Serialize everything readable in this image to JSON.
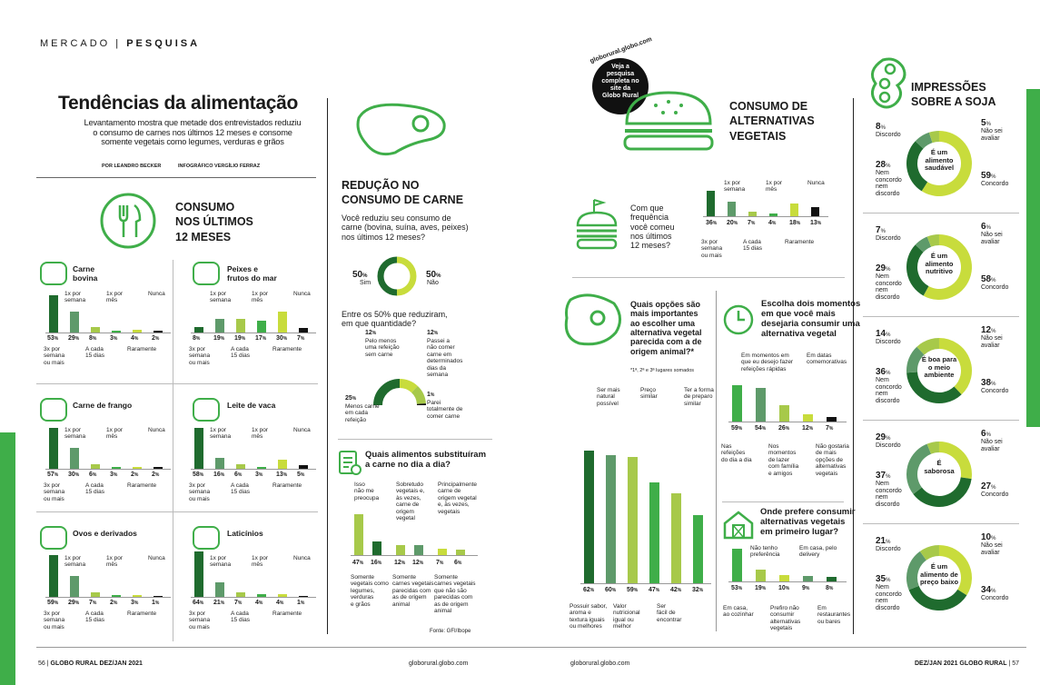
{
  "header": {
    "section": "MERCADO",
    "subsection": "PESQUISA"
  },
  "title": "Tendências da alimentação",
  "intro": "Levantamento mostra que metade dos entrevistados reduziu\no consumo de carnes nos últimos 12 meses e consome\nsomente vegetais como legumes, verduras e grãos",
  "credits": {
    "author": "POR LEANDRO BECKER",
    "graphic": "INFOGRÁFICO VERGÍLIO FERRAZ"
  },
  "promo": {
    "text": "Veja a\npesquisa\ncompleta no\nsite da\nGlobo Rural",
    "url": "globorural.globo.com"
  },
  "colors": {
    "dark": "#1f6b2e",
    "mid": "#5e9a6a",
    "light": "#a7c94a",
    "lime": "#c8dc3c",
    "green": "#3fae49",
    "black": "#111111"
  },
  "consumo": {
    "title": "CONSUMO\nNOS ÚLTIMOS\n12 MESES",
    "charts": [
      {
        "name": "Carne\nbovina",
        "icon": "steak-icon",
        "values": [
          53,
          29,
          8,
          3,
          4,
          2
        ]
      },
      {
        "name": "Peixes e\nfrutos do mar",
        "icon": "fish-icon",
        "values": [
          8,
          19,
          19,
          17,
          30,
          7
        ]
      },
      {
        "name": "Carne de frango",
        "icon": "chicken-leg-icon",
        "values": [
          57,
          30,
          6,
          3,
          2,
          2
        ]
      },
      {
        "name": "Leite de vaca",
        "icon": "cow-icon",
        "values": [
          58,
          16,
          6,
          3,
          13,
          5
        ]
      },
      {
        "name": "Ovos e derivados",
        "icon": "egg-icon",
        "values": [
          59,
          29,
          7,
          2,
          3,
          1
        ]
      },
      {
        "name": "Laticínios",
        "icon": "cheese-icon",
        "values": [
          64,
          21,
          7,
          4,
          4,
          1
        ]
      }
    ],
    "labels_top": [
      "1x por\nsemana",
      "1x por\nmês",
      "Nunca"
    ],
    "labels_bottom": [
      "3x por\nsemana\nou mais",
      "A cada\n15 dias",
      "Raramente"
    ]
  },
  "reducao": {
    "title": "REDUÇÃO NO\nCONSUMO DE CARNE",
    "question": "Você reduziu seu consumo de\ncarne (bovina, suína, aves, peixes)\nnos últimos 12 meses?",
    "sim": {
      "value": 50,
      "label": "Sim"
    },
    "nao": {
      "value": 50,
      "label": "Não"
    },
    "q2": "Entre os 50% que reduziram,\nem que quantidade?",
    "gauge": [
      {
        "value": 12,
        "label": "Pelo menos\numa refeição\nsem carne"
      },
      {
        "value": 12,
        "label": "Passei a\nnão comer\ncarne em\ndeterminados\ndias da\nsemana"
      },
      {
        "value": 25,
        "label": "Menos carne\nem cada\nrefeição"
      },
      {
        "value": 1,
        "label": "Parei\ntotalmente de\ncomer carne"
      }
    ]
  },
  "substituicao": {
    "question": "Quais alimentos substituíram\na carne no dia a dia?",
    "groups": [
      {
        "top": "Isso\nnão me\npreocupa",
        "bottom": "Somente\nvegetais como\nlegumes,\nverduras\ne grãos",
        "values": [
          47,
          16
        ]
      },
      {
        "top": "Sobretudo\nvegetais e,\nàs vezes,\ncarne de\norigem\nvegetal",
        "bottom": "Somente\ncarnes vegetais\nparecidas com\nas de origem\nanimal",
        "values": [
          12,
          12
        ]
      },
      {
        "top": "Principalmente\ncarne de\norigem vegetal\ne, às vezes,\nvegetais",
        "bottom": "Somente\ncarnes vegetais\nque não são\nparecidas com\nas de origem\nanimal",
        "values": [
          7,
          6
        ]
      }
    ],
    "source": "Fonte: GFI/Ibope"
  },
  "alternativas": {
    "title": "CONSUMO DE\nALTERNATIVAS\nVEGETAIS",
    "question": "Com que\nfrequência\nvocê comeu\nnos últimos\n12 meses?",
    "values": [
      36,
      20,
      7,
      4,
      18,
      13
    ],
    "labels_top": [
      "1x por\nsemana",
      "1x por\nmês",
      "Nunca"
    ],
    "labels_bottom": [
      "3x por\nsemana\nou mais",
      "A cada\n15 dias",
      "Raramente"
    ]
  },
  "opcoes": {
    "question": "Quais opções são\nmais importantes\nao escolher uma\nalternativa vegetal\nparecida com a de\norigem animal?*",
    "note": "*1ª, 2ª e 3ª lugares somados",
    "values": [
      62,
      60,
      59,
      47,
      42,
      32
    ],
    "labels_top": [
      "Ser mais\nnatural\npossível",
      "Preço\nsimilar",
      "Ter a forma\nde preparo\nsimilar"
    ],
    "labels_bottom": [
      "Possuir sabor,\naroma e\ntextura iguais\nou melhores",
      "Valor\nnutricional\nigual ou\nmelhor",
      "Ser\nfácil de\nencontrar"
    ]
  },
  "momentos": {
    "question": "Escolha dois momentos\nem que você mais\ndesejaria consumir uma\nalternativa vegetal",
    "values": [
      59,
      54,
      26,
      12,
      7
    ],
    "labels_top": [
      "Em momentos em\nque eu desejo fazer\nrefeições rápidas",
      "Em datas\ncomemorativas"
    ],
    "labels_bottom": [
      "Nas\nrefeições\ndo dia a dia",
      "Nos\nmomentos\nde lazer\ncom família\ne amigos",
      "Não gostaria\nde mais\nopções de\nalternativas\nvegetais"
    ]
  },
  "onde": {
    "question": "Onde prefere consumir\nalternativas vegetais\nem primeiro lugar?",
    "values": [
      53,
      19,
      10,
      9,
      8
    ],
    "labels_top": [
      "Não tenho\npreferência",
      "Em casa, pelo\ndelivery"
    ],
    "labels_bottom": [
      "Em casa,\nao cozinhar",
      "Prefiro não\nconsumir\nalternativas\nvegetais",
      "Em\nrestaurantes\nou bares"
    ]
  },
  "soja": {
    "title": "IMPRESSÕES\nSOBRE A SOJA",
    "items": [
      {
        "statement": "É um\nalimento\nsaudável",
        "discordo": 8,
        "naosei": 5,
        "nem": 28,
        "concordo": 59
      },
      {
        "statement": "É um\nalimento\nnutritivo",
        "discordo": 7,
        "naosei": 6,
        "nem": 29,
        "concordo": 58
      },
      {
        "statement": "É boa para\no meio\nambiente",
        "discordo": 14,
        "naosei": 12,
        "nem": 36,
        "concordo": 38
      },
      {
        "statement": "É\nsaborosa",
        "discordo": 29,
        "naosei": 6,
        "nem": 37,
        "concordo": 27
      },
      {
        "statement": "É um\nalimento de\npreço baixo",
        "discordo": 21,
        "naosei": 10,
        "nem": 35,
        "concordo": 34
      }
    ],
    "labels": {
      "discordo": "Discordo",
      "naosei": "Não sei\navaliar",
      "nem": "Nem\nconcordo\nnem\ndiscordo",
      "concordo": "Concordo"
    }
  },
  "footer": {
    "left_page": "56",
    "left_mag": "GLOBO RURAL DEZ/JAN 2021",
    "left_url": "globorural.globo.com",
    "right_url": "globorural.globo.com",
    "right_mag": "DEZ/JAN 2021 GLOBO RURAL",
    "right_page": "57"
  }
}
